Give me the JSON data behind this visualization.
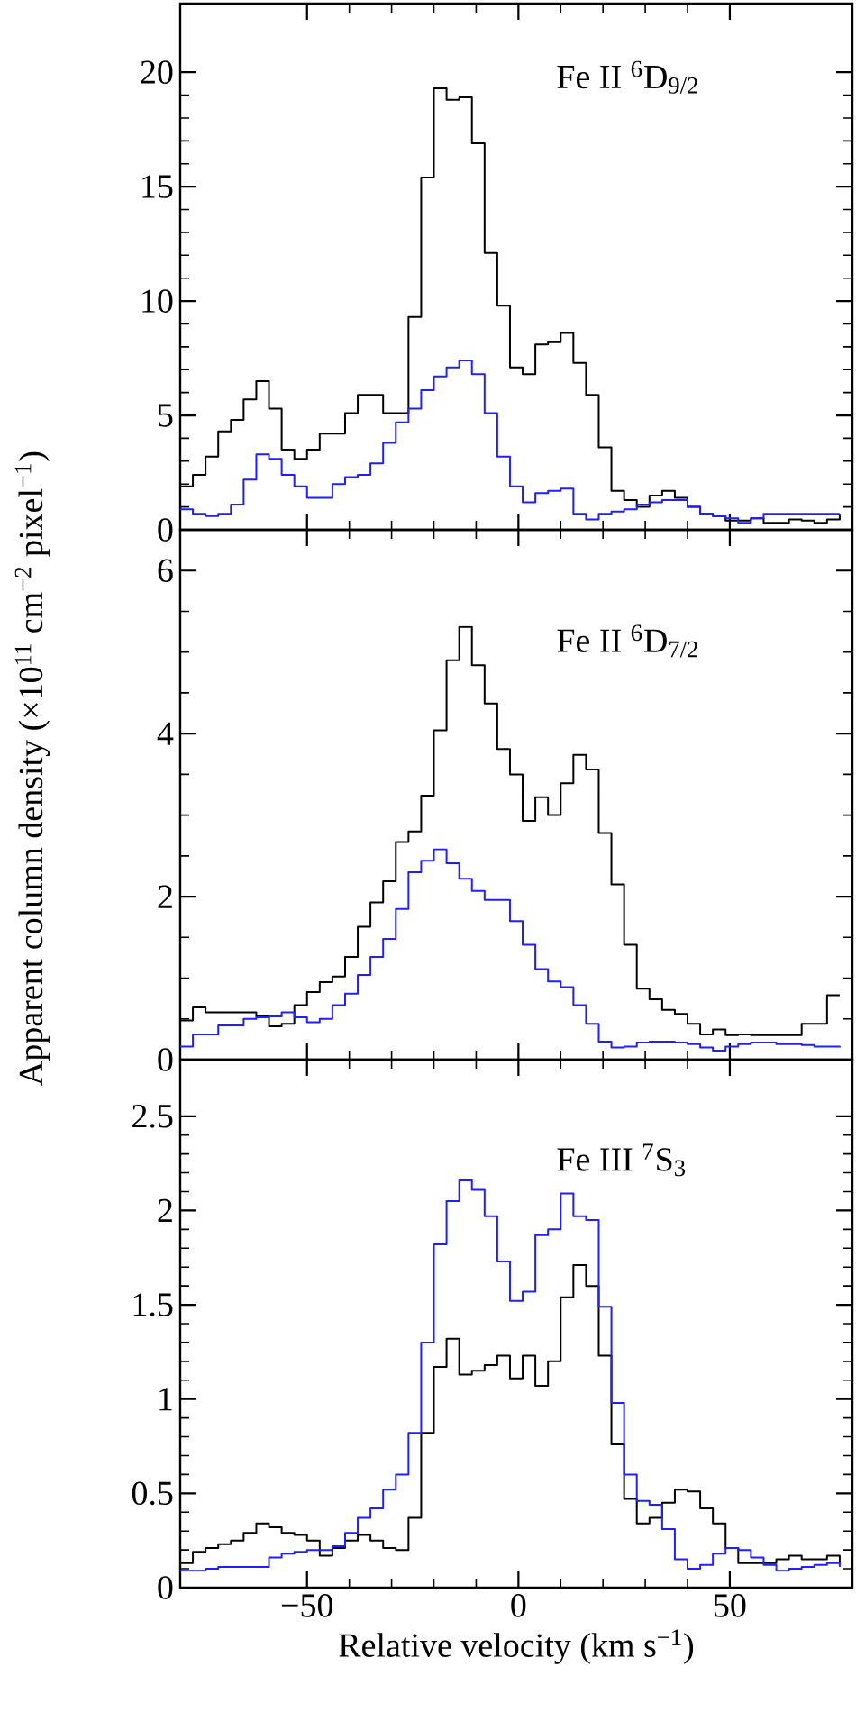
{
  "chart_data": [
    {
      "type": "step",
      "annotations": [
        "Fe II $^{6}$D$_{9/2}$"
      ],
      "tick_labels": "y",
      "x": [
        -80,
        -77,
        -74,
        -71,
        -68,
        -65,
        -62,
        -59,
        -56,
        -53,
        -50,
        -47,
        -44,
        -41,
        -38,
        -35,
        -32,
        -29,
        -26,
        -23,
        -20,
        -17,
        -14,
        -11,
        -8,
        -5,
        -2,
        1,
        4,
        7,
        10,
        13,
        16,
        19,
        22,
        25,
        28,
        31,
        34,
        37,
        40,
        43,
        46,
        49,
        52,
        55,
        58,
        61,
        64,
        67,
        70,
        73,
        76
      ],
      "xlim": [
        -80,
        79
      ],
      "xticks": [
        -50,
        0,
        50
      ],
      "ylim": [
        0,
        23
      ],
      "yticks": [
        0,
        5,
        10,
        15,
        20
      ],
      "series": [
        {
          "color": "#000000",
          "values": [
            1.9,
            2.4,
            3.2,
            4.3,
            4.8,
            5.7,
            6.5,
            5.3,
            3.5,
            3.1,
            3.5,
            4.2,
            4.2,
            5.1,
            5.9,
            5.9,
            5.1,
            5.1,
            9.3,
            15.4,
            19.3,
            18.8,
            18.9,
            16.9,
            12.1,
            9.8,
            7.1,
            6.8,
            8.1,
            8.2,
            8.6,
            7.3,
            5.9,
            3.6,
            1.7,
            1.3,
            1.0,
            1.5,
            1.7,
            1.4,
            1.0,
            0.7,
            0.6,
            0.4,
            0.4,
            0.5,
            0.3,
            0.3,
            0.45,
            0.4,
            0.3,
            0.45,
            0.7
          ]
        },
        {
          "color": "#1f1fff",
          "values": [
            0.9,
            0.7,
            0.6,
            0.7,
            1.1,
            2.2,
            3.3,
            3.1,
            2.4,
            1.9,
            1.4,
            1.4,
            2.0,
            2.3,
            2.4,
            2.9,
            3.8,
            4.7,
            5.3,
            6.1,
            6.7,
            7.1,
            7.4,
            6.8,
            5.1,
            3.2,
            1.9,
            1.2,
            1.6,
            1.7,
            1.8,
            0.7,
            0.45,
            0.7,
            0.8,
            0.9,
            1.1,
            1.2,
            1.3,
            1.3,
            1.0,
            0.7,
            0.6,
            0.5,
            0.3,
            0.5,
            0.7,
            0.7,
            0.7,
            0.7,
            0.7,
            0.7,
            0.7
          ]
        }
      ]
    },
    {
      "type": "step",
      "annotations": [
        "Fe II $^{6}$D$_{7/2}$"
      ],
      "tick_labels": "y",
      "ylabel": "Apparent column density (×10$^{11}$ cm$^{−2}$ pixel$^{−1}$)",
      "x": [
        -80,
        -77,
        -74,
        -71,
        -68,
        -65,
        -62,
        -59,
        -56,
        -53,
        -50,
        -47,
        -44,
        -41,
        -38,
        -35,
        -32,
        -29,
        -26,
        -23,
        -20,
        -17,
        -14,
        -11,
        -8,
        -5,
        -2,
        1,
        4,
        7,
        10,
        13,
        16,
        19,
        22,
        25,
        28,
        31,
        34,
        37,
        40,
        43,
        46,
        49,
        52,
        55,
        58,
        61,
        64,
        67,
        70,
        73,
        76
      ],
      "xlim": [
        -80,
        79
      ],
      "xticks": [
        -50,
        0,
        50
      ],
      "ylim": [
        0,
        6.5
      ],
      "yticks": [
        0,
        2,
        4,
        6
      ],
      "series": [
        {
          "color": "#000000",
          "values": [
            0.48,
            0.64,
            0.58,
            0.58,
            0.58,
            0.58,
            0.53,
            0.41,
            0.44,
            0.67,
            0.83,
            0.95,
            1.02,
            1.26,
            1.63,
            1.93,
            2.19,
            2.67,
            2.8,
            3.24,
            4.04,
            4.9,
            5.31,
            4.84,
            4.37,
            3.81,
            3.5,
            2.93,
            3.22,
            3.0,
            3.39,
            3.74,
            3.56,
            2.78,
            2.15,
            1.41,
            0.87,
            0.74,
            0.61,
            0.56,
            0.44,
            0.31,
            0.37,
            0.3,
            0.31,
            0.3,
            0.3,
            0.3,
            0.3,
            0.44,
            0.44,
            0.79,
            0.79
          ]
        },
        {
          "color": "#1f1fff",
          "values": [
            0.16,
            0.31,
            0.31,
            0.42,
            0.42,
            0.5,
            0.52,
            0.53,
            0.58,
            0.52,
            0.46,
            0.5,
            0.67,
            0.81,
            1.04,
            1.26,
            1.48,
            1.85,
            2.3,
            2.44,
            2.58,
            2.41,
            2.22,
            2.07,
            1.96,
            1.96,
            1.7,
            1.41,
            1.11,
            0.96,
            0.89,
            0.67,
            0.44,
            0.22,
            0.15,
            0.16,
            0.21,
            0.22,
            0.22,
            0.21,
            0.19,
            0.15,
            0.11,
            0.16,
            0.19,
            0.21,
            0.21,
            0.19,
            0.19,
            0.18,
            0.16,
            0.16,
            0.15
          ]
        }
      ]
    },
    {
      "type": "step",
      "annotations": [
        "Fe III $^{7}$S$_{3}$"
      ],
      "xlabel": "Relative velocity (km s$^{−1}$)",
      "x": [
        -80,
        -77,
        -74,
        -71,
        -68,
        -65,
        -62,
        -59,
        -56,
        -53,
        -50,
        -47,
        -44,
        -41,
        -38,
        -35,
        -32,
        -29,
        -26,
        -23,
        -20,
        -17,
        -14,
        -11,
        -8,
        -5,
        -2,
        1,
        4,
        7,
        10,
        13,
        16,
        19,
        22,
        25,
        28,
        31,
        34,
        37,
        40,
        43,
        46,
        49,
        52,
        55,
        58,
        61,
        64,
        67,
        70,
        73,
        76
      ],
      "xlim": [
        -80,
        79
      ],
      "xticks": [
        {
          "value": -50,
          "label": "−50"
        },
        0,
        50
      ],
      "ylim": [
        0,
        2.8
      ],
      "yticks": [
        0,
        0.5,
        1,
        1.5,
        2,
        2.5
      ],
      "series": [
        {
          "color": "#000000",
          "values": [
            0.13,
            0.19,
            0.21,
            0.23,
            0.25,
            0.29,
            0.34,
            0.32,
            0.29,
            0.28,
            0.25,
            0.17,
            0.21,
            0.25,
            0.28,
            0.25,
            0.21,
            0.2,
            0.37,
            0.82,
            1.17,
            1.32,
            1.13,
            1.15,
            1.18,
            1.23,
            1.11,
            1.23,
            1.07,
            1.2,
            1.54,
            1.71,
            1.6,
            1.23,
            0.76,
            0.47,
            0.34,
            0.37,
            0.45,
            0.52,
            0.51,
            0.42,
            0.34,
            0.21,
            0.13,
            0.13,
            0.13,
            0.15,
            0.17,
            0.15,
            0.15,
            0.17,
            0.13
          ]
        },
        {
          "color": "#1f1fff",
          "values": [
            0.09,
            0.09,
            0.1,
            0.11,
            0.11,
            0.11,
            0.11,
            0.16,
            0.18,
            0.19,
            0.2,
            0.2,
            0.22,
            0.29,
            0.37,
            0.42,
            0.52,
            0.6,
            0.82,
            1.3,
            1.82,
            2.05,
            2.16,
            2.11,
            1.97,
            1.73,
            1.52,
            1.57,
            1.87,
            1.9,
            2.09,
            1.97,
            1.95,
            1.49,
            0.98,
            0.6,
            0.46,
            0.44,
            0.31,
            0.15,
            0.1,
            0.12,
            0.18,
            0.21,
            0.2,
            0.16,
            0.12,
            0.09,
            0.1,
            0.11,
            0.12,
            0.13,
            0.11
          ]
        }
      ]
    }
  ]
}
